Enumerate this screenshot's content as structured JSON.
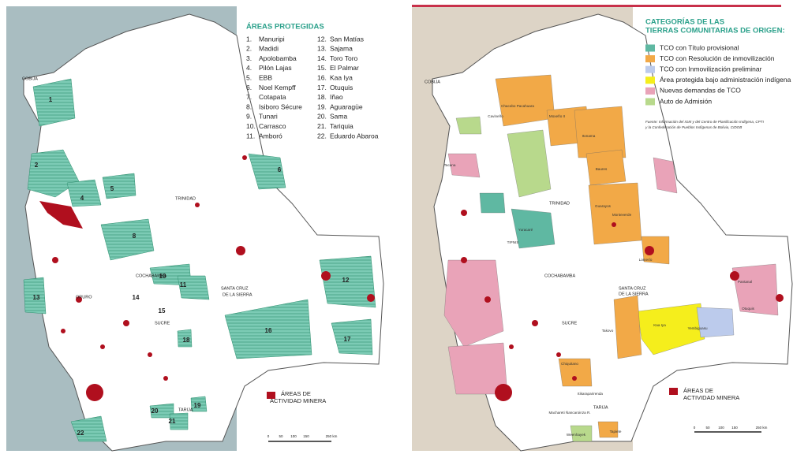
{
  "left_map": {
    "legend_title": "ÁREAS PROTEGIDAS",
    "areas": [
      {
        "number": "1.",
        "name": "Manuripi"
      },
      {
        "number": "2.",
        "name": "Madidi"
      },
      {
        "number": "3.",
        "name": "Apolobamba"
      },
      {
        "number": "4.",
        "name": "Pilón Lajas"
      },
      {
        "number": "5.",
        "name": "EBB"
      },
      {
        "number": "6.",
        "name": "Noel Kempff"
      },
      {
        "number": "7.",
        "name": "Cotapata"
      },
      {
        "number": "8.",
        "name": "Isiboro Sécure"
      },
      {
        "number": "9.",
        "name": "Tunari"
      },
      {
        "number": "10.",
        "name": "Carrasco"
      },
      {
        "number": "11.",
        "name": "Amboró"
      },
      {
        "number": "12.",
        "name": "San Matías"
      },
      {
        "number": "13.",
        "name": "Sajama"
      },
      {
        "number": "14.",
        "name": "Toro Toro"
      },
      {
        "number": "15.",
        "name": "El Palmar"
      },
      {
        "number": "16.",
        "name": "Kaa Iya"
      },
      {
        "number": "17.",
        "name": "Otuquis"
      },
      {
        "number": "18.",
        "name": "Iñao"
      },
      {
        "number": "19.",
        "name": "Aguaragüe"
      },
      {
        "number": "20.",
        "name": "Sama"
      },
      {
        "number": "21.",
        "name": "Tariquia"
      },
      {
        "number": "22.",
        "name": "Eduardo Abaroa"
      }
    ],
    "map_numbers": [
      "1",
      "2",
      "4",
      "5",
      "6",
      "8",
      "10",
      "11",
      "12",
      "13",
      "14",
      "15",
      "16",
      "17",
      "18",
      "19",
      "20",
      "21",
      "22"
    ],
    "cities": [
      "COBIJA",
      "TRINIDAD",
      "COCHABAMBA",
      "SANTA CRUZ",
      "DE LA SIERRA",
      "ORURO",
      "SUCRE",
      "TARIJA"
    ],
    "mining_legend": [
      "ÁREAS DE",
      "ACTIVIDAD MINERA"
    ],
    "scale": [
      "0",
      "50",
      "100",
      "150",
      "250 km"
    ]
  },
  "right_map": {
    "legend_title": [
      "CATEGORÍAS DE LAS",
      "TIERRAS COMUNITARIAS DE ORIGEN:"
    ],
    "categories": [
      {
        "name": "TCO con Título provisional",
        "color": "#5fb8a2"
      },
      {
        "name": "TCO con Resolución de inmovilización",
        "color": "#f2a947"
      },
      {
        "name": "TCO con Inmovilización preliminar",
        "color": "#bccbec"
      },
      {
        "name": "Área protegida bajo administración indígena",
        "color": "#f5ee1c"
      },
      {
        "name": "Nuevas demandas de TCO",
        "color": "#e9a3b8"
      },
      {
        "name": "Auto de Admisión",
        "color": "#b8d98c"
      }
    ],
    "source": [
      "Fuente: Información del IGM y del Centro de Planificación Indígena, CPTI",
      "y la Confederación de Pueblos Indígenas de Bolivia, CIDOB"
    ],
    "tco_names": [
      "Chacobo Pacahuara",
      "Cavineño",
      "Itonama",
      "Moxeño II",
      "Baures",
      "Guarayos",
      "Monteverde",
      "Yuracaré",
      "TIPNIS",
      "Kaa Iya",
      "Yembiguasu",
      "Takovo",
      "Tacana",
      "Chiquitano",
      "Otuquis",
      "Pantanal",
      "Lomerío",
      "Itikaraparirenda",
      "Machareti Ñancaroinza R.",
      "Tapiete",
      "Weenhayek"
    ],
    "cities": [
      "COBIJA",
      "TRINIDAD",
      "COCHABAMBA",
      "SANTA CRUZ",
      "DE LA SIERRA",
      "SUCRE",
      "TARIJA"
    ],
    "mining_legend": [
      "ÁREAS DE",
      "ACTIVIDAD MINERA"
    ],
    "scale": [
      "0",
      "50",
      "100",
      "150",
      "250 km"
    ]
  }
}
